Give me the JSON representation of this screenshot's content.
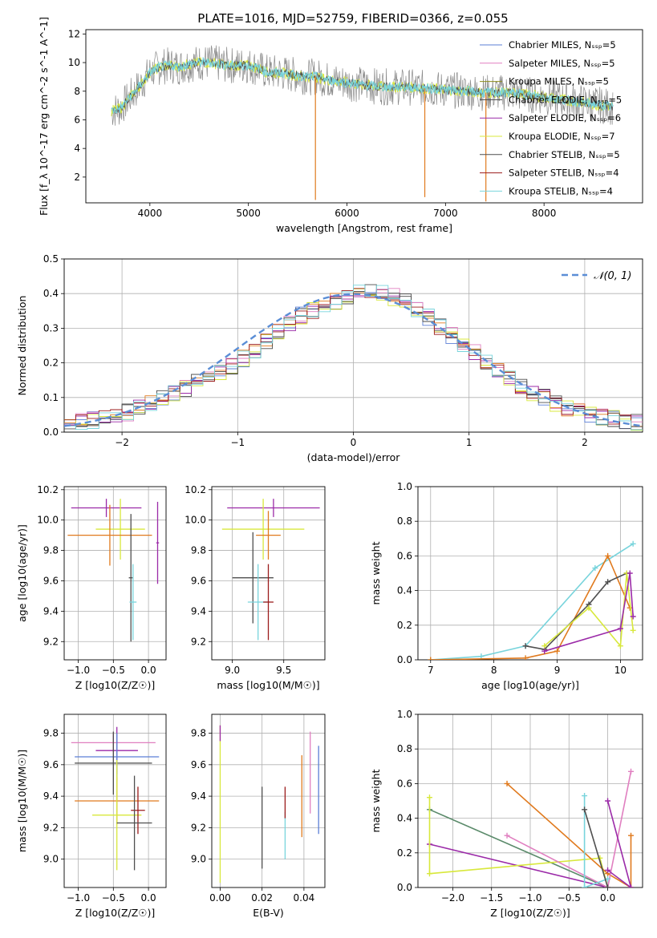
{
  "figure_title": "PLATE=1016, MJD=52759, FIBERID=0366, z=0.055",
  "colors": {
    "chabrier_miles": "#5b7fd6",
    "salpeter_miles": "#e07fc0",
    "kroupa_miles": "#8e8e1e",
    "chabrier_elodie": "#4a4a4a",
    "salpeter_elodie": "#9b2aa8",
    "kroupa_elodie": "#d8e83c",
    "chabrier_stelib": "#4f4f4f",
    "salpeter_stelib": "#9b1b1b",
    "kroupa_stelib": "#78d4dc",
    "orange": "#e07a1e",
    "greenish": "#5a8a6a",
    "data": "#8a8a8a"
  },
  "chart_data": [
    {
      "type": "line",
      "title": "PLATE=1016, MJD=52759, FIBERID=0366, z=0.055",
      "xlabel": "wavelength [Angstrom, rest frame]",
      "ylabel": "Flux [f_λ 10^-17 erg cm^-2 s^-1 A^-1]",
      "xlim": [
        3350,
        9000
      ],
      "ylim": [
        0.2,
        12.3
      ],
      "xticks": [
        "4000",
        "5000",
        "6000",
        "7000",
        "8000"
      ],
      "yticks": [
        "2",
        "4",
        "6",
        "8",
        "10",
        "12"
      ],
      "legend_position": "top-right",
      "series": [
        {
          "name": "Chabrier MILES, N_SSP=5"
        },
        {
          "name": "Salpeter MILES, N_SSP=5"
        },
        {
          "name": "Kroupa MILES, N_SSP=5"
        },
        {
          "name": "Chabrier ELODIE, N_SSP=5"
        },
        {
          "name": "Salpeter ELODIE, N_SSP=6"
        },
        {
          "name": "Kroupa ELODIE, N_SSP=7"
        },
        {
          "name": "Chabrier STELIB, N_SSP=5"
        },
        {
          "name": "Salpeter STELIB, N_SSP=4"
        },
        {
          "name": "Kroupa STELIB, N_SSP=4"
        }
      ],
      "continuum": {
        "x": [
          3600,
          3700,
          3800,
          3900,
          4000,
          4100,
          4200,
          4300,
          4400,
          4500,
          4600,
          4700,
          4800,
          4900,
          5000,
          5100,
          5200,
          5300,
          5400,
          5500,
          5600,
          5700,
          5800,
          5900,
          6000,
          6200,
          6400,
          6600,
          6800,
          7000,
          7200,
          7400,
          7600,
          7800,
          8000,
          8200,
          8400,
          8600,
          8700
        ],
        "y": [
          6.6,
          6.8,
          7.6,
          8.4,
          9.3,
          9.7,
          9.8,
          9.7,
          9.9,
          10.0,
          10.0,
          9.9,
          9.8,
          9.8,
          9.8,
          9.6,
          9.3,
          9.3,
          9.2,
          9.1,
          9.0,
          9.0,
          8.8,
          8.7,
          8.6,
          8.4,
          8.3,
          8.3,
          8.2,
          8.1,
          8.0,
          7.9,
          7.9,
          7.8,
          7.6,
          7.4,
          7.2,
          7.0,
          6.9
        ]
      },
      "sky_spikes": [
        {
          "x": 5680,
          "y": 0.4
        },
        {
          "x": 6790,
          "y": 0.6
        },
        {
          "x": 7410,
          "y": 0.3
        }
      ]
    },
    {
      "type": "line",
      "xlabel": "(data-model)/error",
      "ylabel": "Normed distribution",
      "xlim": [
        -2.5,
        2.5
      ],
      "ylim": [
        0,
        0.5
      ],
      "xticks": [
        "−2",
        "−1",
        "0",
        "1",
        "2"
      ],
      "yticks": [
        "0.0",
        "0.1",
        "0.2",
        "0.3",
        "0.4",
        "0.5"
      ],
      "legend_position": "top-right",
      "reference_curve": {
        "name": "𝒩(0, 1)",
        "mean": 0,
        "sigma": 1
      },
      "histogram_bin_width": 0.1,
      "histogram_envelope": {
        "x": [
          -2.5,
          -2.0,
          -1.5,
          -1.0,
          -0.5,
          0.0,
          0.2,
          0.5,
          1.0,
          1.5,
          2.0,
          2.5
        ],
        "y": [
          0.02,
          0.05,
          0.12,
          0.2,
          0.33,
          0.4,
          0.41,
          0.37,
          0.24,
          0.12,
          0.05,
          0.025
        ]
      }
    },
    {
      "type": "scatter",
      "xlabel": "Z [log10(Z/Z☉)]",
      "ylabel": "age  [log10(age/yr)]",
      "xlim": [
        -1.2,
        0.25
      ],
      "ylim": [
        9.08,
        10.22
      ],
      "xticks": [
        "−1.0",
        "−0.5",
        "0.0"
      ],
      "yticks": [
        "9.2",
        "9.4",
        "9.6",
        "9.8",
        "10.0",
        "10.2"
      ],
      "points": [
        {
          "series": "Salpeter ELODIE",
          "x": -0.6,
          "xerr": 0.5,
          "y": 10.08,
          "yerr": 0.06
        },
        {
          "series": "Kroupa ELODIE",
          "x": -0.4,
          "xerr": 0.35,
          "y": 9.94,
          "yerr": 0.2
        },
        {
          "series": "orange",
          "x": -0.55,
          "xerr": 0.6,
          "y": 9.9,
          "yerr": 0.2
        },
        {
          "series": "Salpeter ELODIE",
          "x": 0.13,
          "xerr": 0.02,
          "y": 9.85,
          "yerr": 0.27
        },
        {
          "series": "Chabrier STELIB",
          "x": -0.25,
          "xerr": 0.03,
          "y": 9.62,
          "yerr": 0.42
        },
        {
          "series": "Kroupa STELIB",
          "x": -0.22,
          "xerr": 0.05,
          "y": 9.46,
          "yerr": 0.25
        }
      ]
    },
    {
      "type": "scatter",
      "xlabel": "mass [log10(M/M☉)]",
      "ylabel": "",
      "xlim": [
        8.8,
        9.9
      ],
      "ylim": [
        9.08,
        10.22
      ],
      "xticks": [
        "9.0",
        "9.5"
      ],
      "yticks": [
        "9.2",
        "9.4",
        "9.6",
        "9.8",
        "10.0",
        "10.2"
      ],
      "points": [
        {
          "series": "Salpeter ELODIE",
          "x": 9.4,
          "xerr": 0.45,
          "y": 10.08,
          "yerr": 0.06
        },
        {
          "series": "Kroupa ELODIE",
          "x": 9.3,
          "xerr": 0.4,
          "y": 9.94,
          "yerr": 0.2
        },
        {
          "series": "orange",
          "x": 9.35,
          "xerr": 0.12,
          "y": 9.9,
          "yerr": 0.16
        },
        {
          "series": "Chabrier STELIB",
          "x": 9.2,
          "xerr": 0.2,
          "y": 9.62,
          "yerr": 0.3
        },
        {
          "series": "Kroupa STELIB",
          "x": 9.25,
          "xerr": 0.1,
          "y": 9.46,
          "yerr": 0.25
        },
        {
          "series": "Salpeter STELIB",
          "x": 9.35,
          "xerr": 0.05,
          "y": 9.46,
          "yerr": 0.25
        }
      ]
    },
    {
      "type": "line",
      "xlabel": "age  [log10(age/yr)]",
      "ylabel": "mass weight",
      "xlim": [
        6.8,
        10.35
      ],
      "ylim": [
        0,
        1
      ],
      "xticks": [
        "7",
        "8",
        "9",
        "10"
      ],
      "yticks": [
        "0.0",
        "0.2",
        "0.4",
        "0.6",
        "0.8",
        "1.0"
      ],
      "series": [
        {
          "color": "Kroupa STELIB",
          "x": [
            7.0,
            7.8,
            8.5,
            9.6,
            10.2
          ],
          "y": [
            0.0,
            0.02,
            0.08,
            0.53,
            0.67
          ]
        },
        {
          "color": "orange",
          "x": [
            7.0,
            8.5,
            9.0,
            9.8,
            10.15
          ],
          "y": [
            0.0,
            0.01,
            0.05,
            0.6,
            0.3
          ]
        },
        {
          "color": "Chabrier STELIB",
          "x": [
            8.5,
            8.8,
            9.5,
            9.8,
            10.1
          ],
          "y": [
            0.08,
            0.06,
            0.32,
            0.45,
            0.5
          ]
        },
        {
          "color": "Kroupa ELODIE",
          "x": [
            8.8,
            9.5,
            10.0,
            10.1,
            10.2
          ],
          "y": [
            0.08,
            0.3,
            0.08,
            0.5,
            0.17
          ]
        },
        {
          "color": "Salpeter ELODIE",
          "x": [
            8.8,
            10.0,
            10.15,
            10.2
          ],
          "y": [
            0.05,
            0.18,
            0.5,
            0.25
          ]
        }
      ]
    },
    {
      "type": "scatter",
      "xlabel": "Z [log10(Z/Z☉)]",
      "ylabel": "mass [log10(M/M☉)]",
      "xlim": [
        -1.2,
        0.25
      ],
      "ylim": [
        8.82,
        9.92
      ],
      "xticks": [
        "−1.0",
        "−0.5",
        "0.0"
      ],
      "yticks": [
        "9.0",
        "9.2",
        "9.4",
        "9.6",
        "9.8"
      ],
      "points": [
        {
          "series": "Salpeter MILES",
          "x": -0.5,
          "xerr": 0.6,
          "y": 9.74,
          "yerr": 0.06
        },
        {
          "series": "Salpeter ELODIE",
          "x": -0.45,
          "xerr": 0.3,
          "y": 9.69,
          "yerr": 0.15
        },
        {
          "series": "Chabrier MILES",
          "x": -0.45,
          "xerr": 0.6,
          "y": 9.65,
          "yerr": 0.15
        },
        {
          "series": "Chabrier ELODIE",
          "x": -0.5,
          "xerr": 0.55,
          "y": 9.61,
          "yerr": 0.2
        },
        {
          "series": "orange",
          "x": -0.45,
          "xerr": 0.6,
          "y": 9.37,
          "yerr": 0.15
        },
        {
          "series": "Kroupa ELODIE",
          "x": -0.45,
          "xerr": 0.35,
          "y": 9.28,
          "yerr": 0.35
        },
        {
          "series": "Salpeter STELIB",
          "x": -0.15,
          "xerr": 0.1,
          "y": 9.31,
          "yerr": 0.15
        },
        {
          "series": "Chabrier STELIB",
          "x": -0.2,
          "xerr": 0.25,
          "y": 9.23,
          "yerr": 0.3
        }
      ]
    },
    {
      "type": "scatter",
      "xlabel": "E(B-V)",
      "ylabel": "",
      "xlim": [
        -0.004,
        0.05
      ],
      "ylim": [
        8.82,
        9.92
      ],
      "xticks": [
        "0.00",
        "0.02",
        "0.04"
      ],
      "yticks": [
        "9.0",
        "9.2",
        "9.4",
        "9.6",
        "9.8"
      ],
      "points": [
        {
          "series": "Kroupa ELODIE",
          "x": 0.0,
          "y": 9.35,
          "yerr": 0.5
        },
        {
          "series": "Salpeter ELODIE",
          "x": 0.0,
          "y": 9.8,
          "yerr": 0.05
        },
        {
          "series": "Chabrier STELIB",
          "x": 0.02,
          "y": 9.2,
          "yerr": 0.26
        },
        {
          "series": "Kroupa STELIB",
          "x": 0.031,
          "y": 9.15,
          "yerr": 0.15
        },
        {
          "series": "Salpeter STELIB",
          "x": 0.031,
          "y": 9.36,
          "yerr": 0.1
        },
        {
          "series": "orange",
          "x": 0.039,
          "y": 9.4,
          "yerr": 0.26
        },
        {
          "series": "Salpeter MILES",
          "x": 0.043,
          "y": 9.55,
          "yerr": 0.26
        },
        {
          "series": "Chabrier MILES",
          "x": 0.047,
          "y": 9.44,
          "yerr": 0.28
        }
      ]
    },
    {
      "type": "line",
      "xlabel": "Z [log10(Z/Z☉)]",
      "ylabel": "mass weight",
      "xlim": [
        -2.45,
        0.45
      ],
      "ylim": [
        0,
        1
      ],
      "xticks": [
        "−2.0",
        "−1.5",
        "−1.0",
        "−0.5",
        "0.0"
      ],
      "yticks": [
        "0.0",
        "0.2",
        "0.4",
        "0.6",
        "0.8",
        "1.0"
      ],
      "series": [
        {
          "color": "greenish",
          "x": [
            -2.3,
            0.0
          ],
          "y": [
            0.45,
            0.0
          ]
        },
        {
          "color": "Salpeter ELODIE",
          "x": [
            -2.3,
            0.0
          ],
          "y": [
            0.25,
            0.0
          ]
        },
        {
          "color": "Kroupa ELODIE",
          "x": [
            -2.3,
            -2.3,
            -0.1,
            0.0
          ],
          "y": [
            0.52,
            0.08,
            0.17,
            0.0
          ]
        },
        {
          "color": "orange",
          "x": [
            -1.3,
            0.0,
            0.3,
            0.3
          ],
          "y": [
            0.6,
            0.08,
            0.0,
            0.3
          ]
        },
        {
          "color": "Salpeter MILES",
          "x": [
            -1.3,
            0.0,
            0.3
          ],
          "y": [
            0.3,
            0.0,
            0.67
          ]
        },
        {
          "color": "Kroupa STELIB",
          "x": [
            -0.3,
            -0.3,
            0.0
          ],
          "y": [
            0.53,
            0.0,
            0.05
          ]
        },
        {
          "color": "Chabrier STELIB",
          "x": [
            -0.3,
            0.0
          ],
          "y": [
            0.45,
            0.0
          ]
        },
        {
          "color": "Salpeter ELODIE",
          "x": [
            0.0,
            0.3,
            0.0
          ],
          "y": [
            0.5,
            0.0,
            0.1
          ]
        }
      ]
    }
  ]
}
